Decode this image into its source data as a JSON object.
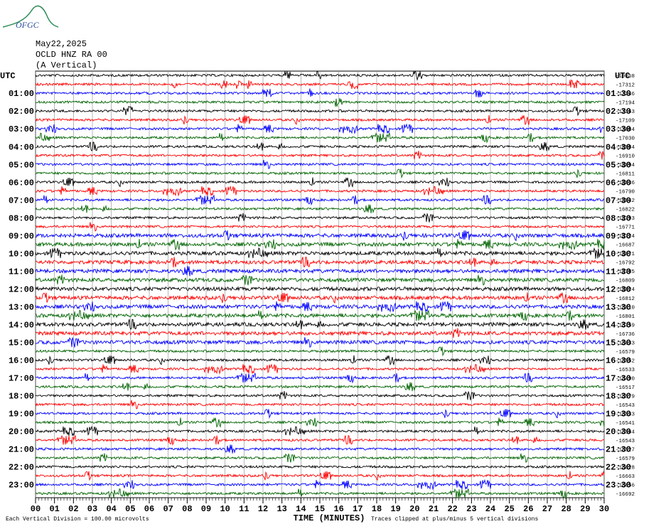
{
  "logo": "OFGC",
  "chart_data": {
    "type": "helicorder",
    "title": "May22,2025",
    "subtitle": "OCLD HNZ RA 00",
    "component": "(A Vertical)",
    "xlabel": "TIME (MINUTES)",
    "scale_note": "Each Vertical Division =  100.00 microvolts",
    "clip_note": "Traces clipped at plus/minus 5 vertical divisions",
    "xlim": [
      0,
      30
    ],
    "xticks": [
      {
        "value": 0,
        "label": "00"
      },
      {
        "value": 1,
        "label": "01"
      },
      {
        "value": 2,
        "label": "02"
      },
      {
        "value": 3,
        "label": "03"
      },
      {
        "value": 4,
        "label": "04"
      },
      {
        "value": 5,
        "label": "05"
      },
      {
        "value": 6,
        "label": "06"
      },
      {
        "value": 7,
        "label": "07"
      },
      {
        "value": 8,
        "label": "08"
      },
      {
        "value": 9,
        "label": "09"
      },
      10,
      11,
      12,
      13,
      14,
      15,
      16,
      17,
      18,
      19,
      20,
      21,
      22,
      23,
      24,
      25,
      26,
      27,
      28,
      29,
      30
    ],
    "colors": [
      "#000000",
      "#ff0000",
      "#0000ff",
      "#006400"
    ],
    "left_labels": [
      "UTC",
      "01:00",
      "02:00",
      "03:00",
      "04:00",
      "05:00",
      "06:00",
      "07:00",
      "08:00",
      "09:00",
      "10:00",
      "11:00",
      "12:00",
      "13:00",
      "14:00",
      "15:00",
      "16:00",
      "17:00",
      "18:00",
      "19:00",
      "20:00",
      "21:00",
      "22:00",
      "23:00"
    ],
    "right_labels": [
      "UTC",
      "01:30",
      "02:30",
      "03:30",
      "04:30",
      "05:30",
      "06:30",
      "07:30",
      "08:30",
      "09:30",
      "10:30",
      "11:30",
      "12:30",
      "13:30",
      "14:30",
      "15:30",
      "16:30",
      "17:30",
      "18:30",
      "19:30",
      "20:30",
      "21:30",
      "22:30",
      "23:30"
    ],
    "trace_offsets": [
      -19858,
      -17312,
      -17246,
      -17194,
      -17163,
      -17109,
      -17084,
      -17030,
      -16984,
      -16910,
      -16894,
      -16811,
      -16836,
      -16790,
      -16842,
      -16822,
      -16793,
      -16771,
      -16724,
      -16687,
      -16671,
      -16792,
      -16785,
      -16809,
      -16824,
      -16812,
      -16810,
      -16801,
      -16759,
      -16736,
      -16633,
      -16579,
      -16552,
      -16533,
      -16490,
      -16517,
      -16579,
      -16543,
      -16533,
      -16541,
      -16564,
      -16543,
      -16527,
      -16579,
      -16628,
      -16663,
      -16656,
      -16692
    ]
  }
}
